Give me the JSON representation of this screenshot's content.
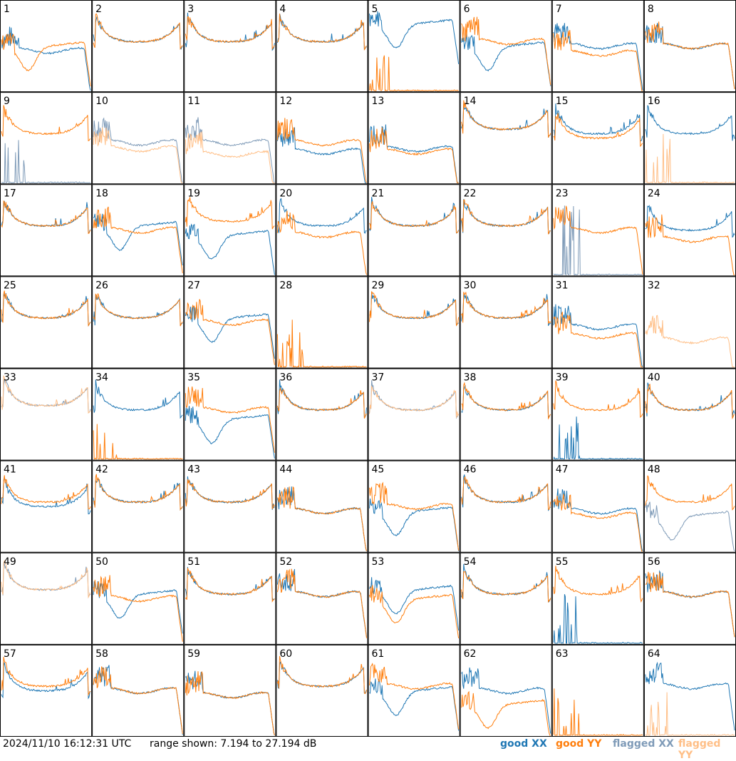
{
  "footer": {
    "timestamp": "2024/11/10 16:12:31 UTC",
    "range": "range shown: 7.194 to 27.194 dB"
  },
  "legend": [
    {
      "label": "good XX",
      "color": "#1f77b4"
    },
    {
      "label": "good YY",
      "color": "#ff7f0e"
    },
    {
      "label": "flagged XX",
      "color": "#7f9bb8"
    },
    {
      "label": "flagged YY",
      "color": "#ffbf87"
    }
  ],
  "chart_data": {
    "type": "line",
    "grid_rows": 8,
    "grid_cols": 8,
    "ylim": [
      7.194,
      27.194
    ],
    "panels": [
      {
        "label": "1",
        "xx": {
          "shape": "flat",
          "state": "good",
          "level": 0.45
        },
        "yy": {
          "shape": "dip",
          "state": "good",
          "level": 0.45
        }
      },
      {
        "label": "2",
        "xx": {
          "shape": "bowl",
          "state": "good",
          "level": 0.55
        },
        "yy": {
          "shape": "bowl",
          "state": "good",
          "level": 0.55
        }
      },
      {
        "label": "3",
        "xx": {
          "shape": "bowl",
          "state": "good",
          "level": 0.55
        },
        "yy": {
          "shape": "bowl",
          "state": "good",
          "level": 0.55
        }
      },
      {
        "label": "4",
        "xx": {
          "shape": "bowl",
          "state": "good",
          "level": 0.55
        },
        "yy": {
          "shape": "bowl",
          "state": "good",
          "level": 0.55
        }
      },
      {
        "label": "5",
        "xx": {
          "shape": "dip",
          "state": "good",
          "level": 0.7
        },
        "yy": {
          "shape": "spikes",
          "state": "good",
          "level": 0.05
        }
      },
      {
        "label": "6",
        "xx": {
          "shape": "dip",
          "state": "good",
          "level": 0.45
        },
        "yy": {
          "shape": "flat",
          "state": "good",
          "level": 0.55
        }
      },
      {
        "label": "7",
        "xx": {
          "shape": "flat",
          "state": "good",
          "level": 0.5
        },
        "yy": {
          "shape": "flat",
          "state": "good",
          "level": 0.42
        }
      },
      {
        "label": "8",
        "xx": {
          "shape": "flat",
          "state": "good",
          "level": 0.5
        },
        "yy": {
          "shape": "flat",
          "state": "good",
          "level": 0.5
        }
      },
      {
        "label": "9",
        "xx": {
          "shape": "spikes",
          "state": "flagged",
          "level": 0.1
        },
        "yy": {
          "shape": "bowl",
          "state": "good",
          "level": 0.55
        }
      },
      {
        "label": "10",
        "xx": {
          "shape": "flat",
          "state": "flagged",
          "level": 0.45
        },
        "yy": {
          "shape": "flat",
          "state": "flagged",
          "level": 0.38
        }
      },
      {
        "label": "11",
        "xx": {
          "shape": "flat",
          "state": "flagged",
          "level": 0.45
        },
        "yy": {
          "shape": "flat",
          "state": "flagged",
          "level": 0.32
        }
      },
      {
        "label": "12",
        "xx": {
          "shape": "flat",
          "state": "good",
          "level": 0.35
        },
        "yy": {
          "shape": "flat",
          "state": "good",
          "level": 0.45
        }
      },
      {
        "label": "13",
        "xx": {
          "shape": "flat",
          "state": "good",
          "level": 0.38
        },
        "yy": {
          "shape": "flat",
          "state": "good",
          "level": 0.35
        }
      },
      {
        "label": "14",
        "xx": {
          "shape": "bowl",
          "state": "good",
          "level": 0.6
        },
        "yy": {
          "shape": "bowl",
          "state": "good",
          "level": 0.6
        }
      },
      {
        "label": "15",
        "xx": {
          "shape": "bowl",
          "state": "good",
          "level": 0.55
        },
        "yy": {
          "shape": "bowl",
          "state": "good",
          "level": 0.5
        }
      },
      {
        "label": "16",
        "xx": {
          "shape": "bowl",
          "state": "good",
          "level": 0.55
        },
        "yy": {
          "shape": "spikes",
          "state": "flagged",
          "level": 0.05
        }
      },
      {
        "label": "17",
        "xx": {
          "shape": "bowl",
          "state": "good",
          "level": 0.55
        },
        "yy": {
          "shape": "bowl",
          "state": "good",
          "level": 0.55
        }
      },
      {
        "label": "18",
        "xx": {
          "shape": "dip",
          "state": "good",
          "level": 0.5
        },
        "yy": {
          "shape": "flat",
          "state": "good",
          "level": 0.5
        }
      },
      {
        "label": "19",
        "xx": {
          "shape": "dip",
          "state": "good",
          "level": 0.4
        },
        "yy": {
          "shape": "bowl",
          "state": "good",
          "level": 0.6
        }
      },
      {
        "label": "20",
        "xx": {
          "shape": "bowl",
          "state": "good",
          "level": 0.55
        },
        "yy": {
          "shape": "flat",
          "state": "good",
          "level": 0.45
        }
      },
      {
        "label": "21",
        "xx": {
          "shape": "bowl",
          "state": "good",
          "level": 0.55
        },
        "yy": {
          "shape": "bowl",
          "state": "good",
          "level": 0.55
        }
      },
      {
        "label": "22",
        "xx": {
          "shape": "bowl",
          "state": "good",
          "level": 0.55
        },
        "yy": {
          "shape": "bowl",
          "state": "good",
          "level": 0.55
        }
      },
      {
        "label": "23",
        "xx": {
          "shape": "spikes",
          "state": "flagged",
          "level": 0.3
        },
        "yy": {
          "shape": "flat",
          "state": "good",
          "level": 0.5
        }
      },
      {
        "label": "24",
        "xx": {
          "shape": "bowl",
          "state": "good",
          "level": 0.5
        },
        "yy": {
          "shape": "flat",
          "state": "good",
          "level": 0.4
        }
      },
      {
        "label": "25",
        "xx": {
          "shape": "bowl",
          "state": "good",
          "level": 0.55
        },
        "yy": {
          "shape": "bowl",
          "state": "good",
          "level": 0.55
        }
      },
      {
        "label": "26",
        "xx": {
          "shape": "bowl",
          "state": "good",
          "level": 0.55
        },
        "yy": {
          "shape": "bowl",
          "state": "good",
          "level": 0.55
        }
      },
      {
        "label": "27",
        "xx": {
          "shape": "dip",
          "state": "good",
          "level": 0.5
        },
        "yy": {
          "shape": "flat",
          "state": "good",
          "level": 0.5
        }
      },
      {
        "label": "28",
        "xx": {
          "shape": "none",
          "state": "good",
          "level": 0
        },
        "yy": {
          "shape": "spikes",
          "state": "good",
          "level": 0.05
        }
      },
      {
        "label": "29",
        "xx": {
          "shape": "bowl",
          "state": "good",
          "level": 0.55
        },
        "yy": {
          "shape": "bowl",
          "state": "good",
          "level": 0.55
        }
      },
      {
        "label": "30",
        "xx": {
          "shape": "bowl",
          "state": "good",
          "level": 0.55
        },
        "yy": {
          "shape": "bowl",
          "state": "good",
          "level": 0.55
        }
      },
      {
        "label": "31",
        "xx": {
          "shape": "flat",
          "state": "good",
          "level": 0.45
        },
        "yy": {
          "shape": "flat",
          "state": "good",
          "level": 0.35
        }
      },
      {
        "label": "32",
        "xx": {
          "shape": "none",
          "state": "flagged",
          "level": 0
        },
        "yy": {
          "shape": "flat",
          "state": "flagged",
          "level": 0.3
        }
      },
      {
        "label": "33",
        "xx": {
          "shape": "bowl",
          "state": "flagged",
          "level": 0.6
        },
        "yy": {
          "shape": "bowl",
          "state": "flagged",
          "level": 0.6
        }
      },
      {
        "label": "34",
        "xx": {
          "shape": "bowl",
          "state": "good",
          "level": 0.55
        },
        "yy": {
          "shape": "spikes",
          "state": "good",
          "level": 0.05
        }
      },
      {
        "label": "35",
        "xx": {
          "shape": "dip",
          "state": "good",
          "level": 0.4
        },
        "yy": {
          "shape": "flat",
          "state": "good",
          "level": 0.55
        }
      },
      {
        "label": "36",
        "xx": {
          "shape": "bowl",
          "state": "good",
          "level": 0.55
        },
        "yy": {
          "shape": "bowl",
          "state": "good",
          "level": 0.55
        }
      },
      {
        "label": "37",
        "xx": {
          "shape": "bowl",
          "state": "flagged",
          "level": 0.55
        },
        "yy": {
          "shape": "bowl",
          "state": "flagged",
          "level": 0.55
        }
      },
      {
        "label": "38",
        "xx": {
          "shape": "bowl",
          "state": "good",
          "level": 0.55
        },
        "yy": {
          "shape": "bowl",
          "state": "good",
          "level": 0.55
        }
      },
      {
        "label": "39",
        "xx": {
          "shape": "spikes",
          "state": "good",
          "level": 0.02
        },
        "yy": {
          "shape": "bowl",
          "state": "good",
          "level": 0.55
        }
      },
      {
        "label": "40",
        "xx": {
          "shape": "bowl",
          "state": "good",
          "level": 0.55
        },
        "yy": {
          "shape": "bowl",
          "state": "good",
          "level": 0.55
        }
      },
      {
        "label": "41",
        "xx": {
          "shape": "bowl",
          "state": "good",
          "level": 0.5
        },
        "yy": {
          "shape": "bowl",
          "state": "good",
          "level": 0.55
        }
      },
      {
        "label": "42",
        "xx": {
          "shape": "bowl",
          "state": "good",
          "level": 0.55
        },
        "yy": {
          "shape": "bowl",
          "state": "good",
          "level": 0.55
        }
      },
      {
        "label": "43",
        "xx": {
          "shape": "bowl",
          "state": "good",
          "level": 0.55
        },
        "yy": {
          "shape": "bowl",
          "state": "good",
          "level": 0.55
        }
      },
      {
        "label": "44",
        "xx": {
          "shape": "flat",
          "state": "good",
          "level": 0.45
        },
        "yy": {
          "shape": "flat",
          "state": "good",
          "level": 0.45
        }
      },
      {
        "label": "45",
        "xx": {
          "shape": "dip",
          "state": "good",
          "level": 0.4
        },
        "yy": {
          "shape": "flat",
          "state": "good",
          "level": 0.5
        }
      },
      {
        "label": "46",
        "xx": {
          "shape": "bowl",
          "state": "good",
          "level": 0.55
        },
        "yy": {
          "shape": "bowl",
          "state": "good",
          "level": 0.55
        }
      },
      {
        "label": "47",
        "xx": {
          "shape": "flat",
          "state": "good",
          "level": 0.45
        },
        "yy": {
          "shape": "flat",
          "state": "good",
          "level": 0.4
        }
      },
      {
        "label": "48",
        "xx": {
          "shape": "dip",
          "state": "flagged",
          "level": 0.35
        },
        "yy": {
          "shape": "bowl",
          "state": "good",
          "level": 0.55
        }
      },
      {
        "label": "49",
        "xx": {
          "shape": "bowl",
          "state": "flagged",
          "level": 0.6
        },
        "yy": {
          "shape": "bowl",
          "state": "flagged",
          "level": 0.6
        }
      },
      {
        "label": "50",
        "xx": {
          "shape": "dip",
          "state": "good",
          "level": 0.5
        },
        "yy": {
          "shape": "flat",
          "state": "good",
          "level": 0.5
        }
      },
      {
        "label": "51",
        "xx": {
          "shape": "bowl",
          "state": "good",
          "level": 0.55
        },
        "yy": {
          "shape": "bowl",
          "state": "good",
          "level": 0.55
        }
      },
      {
        "label": "52",
        "xx": {
          "shape": "flat",
          "state": "good",
          "level": 0.55
        },
        "yy": {
          "shape": "flat",
          "state": "good",
          "level": 0.55
        }
      },
      {
        "label": "53",
        "xx": {
          "shape": "dip",
          "state": "good",
          "level": 0.55
        },
        "yy": {
          "shape": "dip",
          "state": "good",
          "level": 0.45
        }
      },
      {
        "label": "54",
        "xx": {
          "shape": "bowl",
          "state": "good",
          "level": 0.55
        },
        "yy": {
          "shape": "bowl",
          "state": "good",
          "level": 0.55
        }
      },
      {
        "label": "55",
        "xx": {
          "shape": "spikes",
          "state": "good",
          "level": 0.05
        },
        "yy": {
          "shape": "bowl",
          "state": "good",
          "level": 0.55
        }
      },
      {
        "label": "56",
        "xx": {
          "shape": "flat",
          "state": "good",
          "level": 0.55
        },
        "yy": {
          "shape": "flat",
          "state": "good",
          "level": 0.55
        }
      },
      {
        "label": "57",
        "xx": {
          "shape": "bowl",
          "state": "good",
          "level": 0.5
        },
        "yy": {
          "shape": "bowl",
          "state": "good",
          "level": 0.55
        }
      },
      {
        "label": "58",
        "xx": {
          "shape": "flat",
          "state": "good",
          "level": 0.5
        },
        "yy": {
          "shape": "flat",
          "state": "good",
          "level": 0.5
        }
      },
      {
        "label": "59",
        "xx": {
          "shape": "flat",
          "state": "good",
          "level": 0.45
        },
        "yy": {
          "shape": "flat",
          "state": "good",
          "level": 0.45
        }
      },
      {
        "label": "60",
        "xx": {
          "shape": "bowl",
          "state": "good",
          "level": 0.55
        },
        "yy": {
          "shape": "bowl",
          "state": "good",
          "level": 0.55
        }
      },
      {
        "label": "61",
        "xx": {
          "shape": "dip",
          "state": "good",
          "level": 0.45
        },
        "yy": {
          "shape": "flat",
          "state": "good",
          "level": 0.55
        }
      },
      {
        "label": "62",
        "xx": {
          "shape": "flat",
          "state": "good",
          "level": 0.5
        },
        "yy": {
          "shape": "dip",
          "state": "good",
          "level": 0.3
        }
      },
      {
        "label": "63",
        "xx": {
          "shape": "none",
          "state": "good",
          "level": 0
        },
        "yy": {
          "shape": "spikes",
          "state": "good",
          "level": 0.05
        }
      },
      {
        "label": "64",
        "xx": {
          "shape": "flat",
          "state": "good",
          "level": 0.55
        },
        "yy": {
          "shape": "spikes",
          "state": "flagged",
          "level": 0.05
        }
      }
    ]
  }
}
